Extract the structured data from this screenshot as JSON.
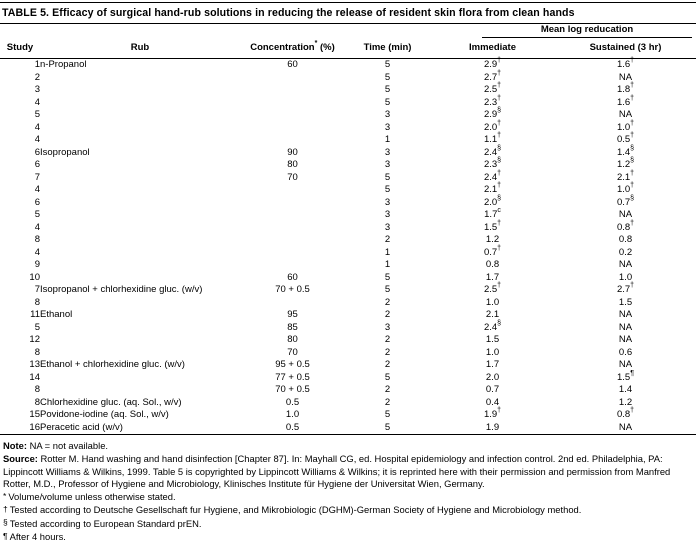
{
  "colors": {
    "text": "#000000",
    "background": "#ffffff"
  },
  "table": {
    "title": "TABLE 5. Efficacy of surgical hand-rub solutions in reducing the release of resident skin flora from clean hands",
    "columns": {
      "study": "Study",
      "rub": "Rub",
      "concentration": "Concentration",
      "concentration_marker": "*",
      "concentration_unit": " (%)",
      "time": "Time (min)",
      "group": "Mean log reducation",
      "immediate": "Immediate",
      "sustained": "Sustained (3 hr)"
    },
    "rows": [
      {
        "study": "1",
        "rub": "n-Propanol",
        "conc": "60",
        "time": "5",
        "imm": "2.9",
        "imm_sup": "†",
        "sus": "1.6",
        "sus_sup": "†"
      },
      {
        "study": "2",
        "rub": "",
        "conc": "",
        "time": "5",
        "imm": "2.7",
        "imm_sup": "†",
        "sus": "NA"
      },
      {
        "study": "3",
        "rub": "",
        "conc": "",
        "time": "5",
        "imm": "2.5",
        "imm_sup": "†",
        "sus": "1.8",
        "sus_sup": "†"
      },
      {
        "study": "4",
        "rub": "",
        "conc": "",
        "time": "5",
        "imm": "2.3",
        "imm_sup": "†",
        "sus": "1.6",
        "sus_sup": "†"
      },
      {
        "study": "5",
        "rub": "",
        "conc": "",
        "time": "3",
        "imm": "2.9",
        "imm_sup": "§",
        "sus": "NA"
      },
      {
        "study": "4",
        "rub": "",
        "conc": "",
        "time": "3",
        "imm": "2.0",
        "imm_sup": "†",
        "sus": "1.0",
        "sus_sup": "†"
      },
      {
        "study": "4",
        "rub": "",
        "conc": "",
        "time": "1",
        "imm": "1.1",
        "imm_sup": "†",
        "sus": "0.5",
        "sus_sup": "†"
      },
      {
        "study": "6",
        "rub": "Isopropanol",
        "conc": "90",
        "time": "3",
        "imm": "2.4",
        "imm_sup": "§",
        "sus": "1.4",
        "sus_sup": "§"
      },
      {
        "study": "6",
        "rub": "",
        "conc": "80",
        "time": "3",
        "imm": "2.3",
        "imm_sup": "§",
        "sus": "1.2",
        "sus_sup": "§"
      },
      {
        "study": "7",
        "rub": "",
        "conc": "70",
        "time": "5",
        "imm": "2.4",
        "imm_sup": "†",
        "sus": "2.1",
        "sus_sup": "†"
      },
      {
        "study": "4",
        "rub": "",
        "conc": "",
        "time": "5",
        "imm": "2.1",
        "imm_sup": "†",
        "sus": "1.0",
        "sus_sup": "†"
      },
      {
        "study": "6",
        "rub": "",
        "conc": "",
        "time": "3",
        "imm": "2.0",
        "imm_sup": "§",
        "sus": "0.7",
        "sus_sup": "§"
      },
      {
        "study": "5",
        "rub": "",
        "conc": "",
        "time": "3",
        "imm": "1.7",
        "imm_sup": "c",
        "sus": "NA"
      },
      {
        "study": "4",
        "rub": "",
        "conc": "",
        "time": "3",
        "imm": "1.5",
        "imm_sup": "†",
        "sus": "0.8",
        "sus_sup": "†"
      },
      {
        "study": "8",
        "rub": "",
        "conc": "",
        "time": "2",
        "imm": "1.2",
        "sus": "0.8"
      },
      {
        "study": "4",
        "rub": "",
        "conc": "",
        "time": "1",
        "imm": "0.7",
        "imm_sup": "†",
        "sus": "0.2"
      },
      {
        "study": "9",
        "rub": "",
        "conc": "",
        "time": "1",
        "imm": "0.8",
        "sus": "NA"
      },
      {
        "study": "10",
        "rub": "",
        "conc": "60",
        "time": "5",
        "imm": "1.7",
        "sus": "1.0"
      },
      {
        "study": "7",
        "rub": "Isopropanol + chlorhexidine gluc. (w/v)",
        "conc": "70 + 0.5",
        "time": "5",
        "imm": "2.5",
        "imm_sup": "†",
        "sus": "2.7",
        "sus_sup": "†"
      },
      {
        "study": "8",
        "rub": "",
        "conc": "",
        "time": "2",
        "imm": "1.0",
        "sus": "1.5"
      },
      {
        "study": "11",
        "rub": "Ethanol",
        "conc": "95",
        "time": "2",
        "imm": "2.1",
        "sus": "NA"
      },
      {
        "study": "5",
        "rub": "",
        "conc": "85",
        "time": "3",
        "imm": "2.4",
        "imm_sup": "§",
        "sus": "NA"
      },
      {
        "study": "12",
        "rub": "",
        "conc": "80",
        "time": "2",
        "imm": "1.5",
        "sus": "NA"
      },
      {
        "study": "8",
        "rub": "",
        "conc": "70",
        "time": "2",
        "imm": "1.0",
        "sus": "0.6"
      },
      {
        "study": "13",
        "rub": "Ethanol + chlorhexidine gluc. (w/v)",
        "conc": "95 + 0.5",
        "time": "2",
        "imm": "1.7",
        "sus": "NA"
      },
      {
        "study": "14",
        "rub": "",
        "conc": "77 + 0.5",
        "time": "5",
        "imm": "2.0",
        "sus": "1.5",
        "sus_sup": "¶"
      },
      {
        "study": "8",
        "rub": "",
        "conc": "70 + 0.5",
        "time": "2",
        "imm": "0.7",
        "sus": "1.4"
      },
      {
        "study": "8",
        "rub": "Chlorhexidine gluc. (aq. Sol., w/v)",
        "conc": "0.5",
        "time": "2",
        "imm": "0.4",
        "sus": "1.2"
      },
      {
        "study": "15",
        "rub": "Povidone-iodine (aq. Sol., w/v)",
        "conc": "1.0",
        "time": "5",
        "imm": "1.9",
        "imm_sup": "†",
        "sus": "0.8",
        "sus_sup": "†"
      },
      {
        "study": "16",
        "rub": "Peracetic acid (w/v)",
        "conc": "0.5",
        "time": "5",
        "imm": "1.9",
        "sus": "NA"
      }
    ]
  },
  "footnotes": {
    "note_label": "Note:",
    "note_text": " NA = not available.",
    "source_label": "Source:",
    "source_text": " Rotter M. Hand washing and hand disinfection [Chapter 87]. In: Mayhall CG, ed. Hospital epidemiology and infection control. 2nd ed. Philadelphia, PA: Lippincott Williams & Wilkins, 1999. Table 5 is copyrighted by Lippincott Williams & Wilkins; it is reprinted here with their permission and permission from Manfred Rotter, M.D., Professor of Hygiene and Microbiology, Klinisches Institute für Hygiene der Universitat Wien, Germany.",
    "symbols": [
      {
        "marker": "*",
        "text": "Volume/volume unless otherwise stated."
      },
      {
        "marker": "†",
        "text": "Tested according to Deutsche Gesellschaft fur Hygiene, and Mikrobiologic (DGHM)-German Society of Hygiene and Microbiology method."
      },
      {
        "marker": "§",
        "text": "Tested according to European Standard prEN."
      },
      {
        "marker": "¶",
        "text": "After 4 hours."
      }
    ]
  }
}
